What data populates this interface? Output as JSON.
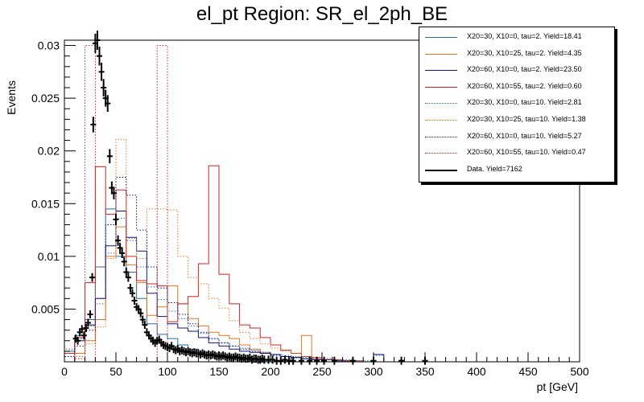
{
  "chart_data": {
    "type": "histogram",
    "title": "el_pt Region: SR_el_2ph_BE",
    "xlabel": "pt [GeV]",
    "ylabel": "Events",
    "xlim": [
      0,
      500
    ],
    "ylim": [
      0,
      0.0305
    ],
    "bin_width": 10,
    "xticks": [
      0,
      50,
      100,
      150,
      200,
      250,
      300,
      350,
      400,
      450,
      500
    ],
    "yticks": [
      0.005,
      0.01,
      0.015,
      0.02,
      0.025,
      0.03
    ],
    "ytick_labels": [
      "0.005",
      "0.01",
      "0.015",
      "0.02",
      "0.025",
      "0.03"
    ],
    "series": [
      {
        "name": "X20=30, X10=0, tau=2. Yield=18.41",
        "color": "#1f6db0",
        "dash": false,
        "values": [
          0.001,
          0.0025,
          0.004,
          0.009,
          0.0145,
          0.01,
          0.0085,
          0.006,
          0.0036,
          0.0026,
          0.0022,
          0.0016,
          0.0012,
          0.0009,
          0.0006,
          0.0004,
          0.0003,
          0.0002,
          0.0002,
          0.0001,
          0,
          0,
          0,
          0,
          0,
          0,
          0,
          0,
          0,
          0,
          0,
          0,
          0,
          0,
          0,
          0,
          0,
          0,
          0,
          0,
          0,
          0,
          0,
          0,
          0,
          0,
          0,
          0,
          0,
          0
        ]
      },
      {
        "name": "X20=30, X10=25, tau=2. Yield=4.35",
        "color": "#e8741c",
        "dash": false,
        "values": [
          0,
          0.0008,
          0.002,
          0.004,
          0.01,
          0.0128,
          0.0092,
          0.0075,
          0.0044,
          0.0052,
          0.0072,
          0.0055,
          0.0041,
          0.0034,
          0.0028,
          0.0025,
          0.0022,
          0.0016,
          0.0012,
          0.0009,
          0.0007,
          0.0005,
          0.0004,
          0.0025,
          0,
          0,
          0,
          0,
          0,
          0,
          0,
          0,
          0,
          0,
          0,
          0,
          0,
          0,
          0,
          0,
          0,
          0,
          0,
          0,
          0,
          0,
          0,
          0,
          0,
          0
        ]
      },
      {
        "name": "X20=60, X10=0, tau=2. Yield=23.50",
        "color": "#101080",
        "dash": false,
        "values": [
          0.0008,
          0.002,
          0.0035,
          0.006,
          0.011,
          0.0143,
          0.0118,
          0.0105,
          0.0065,
          0.0043,
          0.0036,
          0.0032,
          0.0029,
          0.0023,
          0.0018,
          0.0015,
          0.0012,
          0.001,
          0.0009,
          0.0008,
          0.0007,
          0.0005,
          0.0004,
          0.0003,
          0.0002,
          0.0002,
          0.0001,
          0.0001,
          0,
          0,
          0.0007,
          0,
          0,
          0,
          0,
          0,
          0,
          0,
          0,
          0,
          0,
          0,
          0,
          0,
          0,
          0,
          0,
          0,
          0,
          0
        ]
      },
      {
        "name": "X20=60, X10=55, tau=2. Yield=0.60",
        "color": "#d61f1f",
        "dash": false,
        "values": [
          0.0008,
          0.0023,
          0.0075,
          0.0185,
          0.014,
          0.0163,
          0.01,
          0.0077,
          0.0074,
          0.0072,
          0.0038,
          0.0055,
          0.0062,
          0.0093,
          0.0186,
          0.0083,
          0.0055,
          0.0035,
          0.0032,
          0.0023,
          0.0016,
          0.0011,
          0.0008,
          0.0005,
          0.0004,
          0.0002,
          0.0002,
          0.0001,
          0.0001,
          0,
          0,
          0,
          0,
          0,
          0,
          0,
          0,
          0,
          0,
          0,
          0,
          0,
          0,
          0,
          0,
          0,
          0,
          0,
          0,
          0
        ]
      },
      {
        "name": "X20=30, X10=0, tau=10. Yield=2.81",
        "color": "#1f6db0",
        "dash": true,
        "values": [
          0.0012,
          0.0022,
          0.0034,
          0.0055,
          0.0103,
          0.0136,
          0.0115,
          0.009,
          0.0071,
          0.0059,
          0.0048,
          0.0041,
          0.0034,
          0.0027,
          0.0022,
          0.0018,
          0.0015,
          0.0013,
          0.0011,
          0.0009,
          0.0007,
          0.0006,
          0.0005,
          0.0004,
          0.0003,
          0.0003,
          0.0002,
          0.0002,
          0.0001,
          0.0001,
          0.0006,
          0,
          0,
          0,
          0,
          0,
          0,
          0,
          0,
          0,
          0,
          0,
          0,
          0,
          0,
          0,
          0,
          0,
          0,
          0
        ]
      },
      {
        "name": "X20=30, X10=25, tau=10. Yield=1.38",
        "color": "#e8741c",
        "dash": true,
        "values": [
          0,
          0.0005,
          0.0017,
          0.0033,
          0.0098,
          0.0211,
          0.0117,
          0.0098,
          0.0145,
          0.0145,
          0.0144,
          0.01,
          0.008,
          0.0074,
          0.006,
          0.0051,
          0.0039,
          0.0028,
          0.0022,
          0.0017,
          0.0013,
          0.001,
          0.0008,
          0.0005,
          0.0003,
          0.0002,
          0.0002,
          0.0001,
          0.0001,
          0,
          0,
          0,
          0,
          0,
          0,
          0,
          0,
          0,
          0,
          0,
          0,
          0,
          0,
          0,
          0,
          0,
          0,
          0,
          0,
          0
        ]
      },
      {
        "name": "X20=60, X10=0, tau=10. Yield=5.27",
        "color": "#101080",
        "dash": true,
        "values": [
          0.0005,
          0.0015,
          0.003,
          0.006,
          0.013,
          0.0175,
          0.0158,
          0.0125,
          0.009,
          0.007,
          0.0056,
          0.0045,
          0.0036,
          0.0028,
          0.0022,
          0.0018,
          0.0015,
          0.0012,
          0.001,
          0.0008,
          0.0006,
          0.0005,
          0.0004,
          0.0003,
          0.0002,
          0.0002,
          0.0001,
          0.0001,
          0,
          0,
          0,
          0,
          0,
          0,
          0,
          0,
          0,
          0,
          0,
          0,
          0,
          0,
          0,
          0,
          0,
          0,
          0,
          0,
          0,
          0
        ]
      },
      {
        "name": "X20=60, X10=55, tau=10. Yield=0.47",
        "color": "#d61f1f",
        "dash": true,
        "values": [
          0,
          0.0003,
          0.03,
          0,
          0,
          0,
          0,
          0,
          0,
          0.03,
          0,
          0,
          0,
          0,
          0,
          0,
          0,
          0,
          0,
          0,
          0,
          0,
          0,
          0,
          0,
          0,
          0,
          0,
          0,
          0,
          0,
          0,
          0,
          0,
          0,
          0,
          0,
          0,
          0,
          0,
          0,
          0,
          0,
          0,
          0,
          0,
          0,
          0,
          0,
          0
        ]
      },
      {
        "name": "Data. Yield=7162",
        "color": "#000000",
        "dash": false,
        "type": "points",
        "values": []
      }
    ],
    "data_points": [
      [
        11,
        0.0022
      ],
      [
        13,
        0.002
      ],
      [
        15,
        0.0028
      ],
      [
        17,
        0.0031
      ],
      [
        19,
        0.0025
      ],
      [
        21,
        0.0032
      ],
      [
        23,
        0.0037
      ],
      [
        25,
        0.0045
      ],
      [
        27,
        0.008
      ],
      [
        28,
        0.0225
      ],
      [
        30,
        0.0302
      ],
      [
        32,
        0.0305
      ],
      [
        34,
        0.029
      ],
      [
        36,
        0.0275
      ],
      [
        38,
        0.026
      ],
      [
        40,
        0.025
      ],
      [
        42,
        0.0245
      ],
      [
        44,
        0.0195
      ],
      [
        46,
        0.0165
      ],
      [
        48,
        0.016
      ],
      [
        50,
        0.0135
      ],
      [
        52,
        0.0115
      ],
      [
        54,
        0.0108
      ],
      [
        56,
        0.0103
      ],
      [
        58,
        0.0095
      ],
      [
        60,
        0.0085
      ],
      [
        62,
        0.008
      ],
      [
        64,
        0.007
      ],
      [
        66,
        0.0065
      ],
      [
        68,
        0.0058
      ],
      [
        70,
        0.0052
      ],
      [
        72,
        0.005
      ],
      [
        74,
        0.0046
      ],
      [
        76,
        0.004
      ],
      [
        78,
        0.0035
      ],
      [
        80,
        0.0028
      ],
      [
        82,
        0.0025
      ],
      [
        84,
        0.0022
      ],
      [
        86,
        0.002
      ],
      [
        88,
        0.0018
      ],
      [
        90,
        0.002
      ],
      [
        92,
        0.0021
      ],
      [
        94,
        0.0018
      ],
      [
        96,
        0.0016
      ],
      [
        98,
        0.0015
      ],
      [
        100,
        0.0014
      ],
      [
        102,
        0.0013
      ],
      [
        104,
        0.0015
      ],
      [
        106,
        0.0012
      ],
      [
        108,
        0.0011
      ],
      [
        110,
        0.0012
      ],
      [
        112,
        0.001
      ],
      [
        114,
        0.0011
      ],
      [
        116,
        0.001
      ],
      [
        118,
        0.0009
      ],
      [
        120,
        0.001
      ],
      [
        122,
        0.0009
      ],
      [
        124,
        0.0008
      ],
      [
        126,
        0.0009
      ],
      [
        128,
        0.0008
      ],
      [
        130,
        0.0008
      ],
      [
        132,
        0.0007
      ],
      [
        134,
        0.0008
      ],
      [
        136,
        0.0007
      ],
      [
        138,
        0.0006
      ],
      [
        140,
        0.0007
      ],
      [
        142,
        0.0006
      ],
      [
        144,
        0.0007
      ],
      [
        146,
        0.0006
      ],
      [
        148,
        0.0005
      ],
      [
        150,
        0.0006
      ],
      [
        152,
        0.0005
      ],
      [
        154,
        0.0006
      ],
      [
        156,
        0.0005
      ],
      [
        158,
        0.0004
      ],
      [
        160,
        0.0005
      ],
      [
        162,
        0.0004
      ],
      [
        164,
        0.0004
      ],
      [
        166,
        0.0005
      ],
      [
        168,
        0.0004
      ],
      [
        170,
        0.0004
      ],
      [
        172,
        0.0003
      ],
      [
        174,
        0.0004
      ],
      [
        176,
        0.0003
      ],
      [
        178,
        0.0003
      ],
      [
        180,
        0.0004
      ],
      [
        182,
        0.0002
      ],
      [
        184,
        0.0003
      ],
      [
        186,
        0.0003
      ],
      [
        188,
        0.0002
      ],
      [
        190,
        0.0002
      ],
      [
        192,
        0.0003
      ],
      [
        194,
        0.0002
      ],
      [
        198,
        0.0002
      ],
      [
        202,
        0.0002
      ],
      [
        206,
        0.0001
      ],
      [
        210,
        0.0001
      ],
      [
        214,
        0.0002
      ],
      [
        218,
        0.0001
      ],
      [
        222,
        0.0001
      ],
      [
        230,
        0.0001
      ],
      [
        238,
        0.0001
      ],
      [
        245,
        0.0001
      ],
      [
        252,
        0.0001
      ],
      [
        262,
        0.0001
      ],
      [
        280,
        0.0001
      ],
      [
        300,
        0.0001
      ],
      [
        327,
        0.0001
      ],
      [
        350,
        0.0001
      ]
    ]
  }
}
